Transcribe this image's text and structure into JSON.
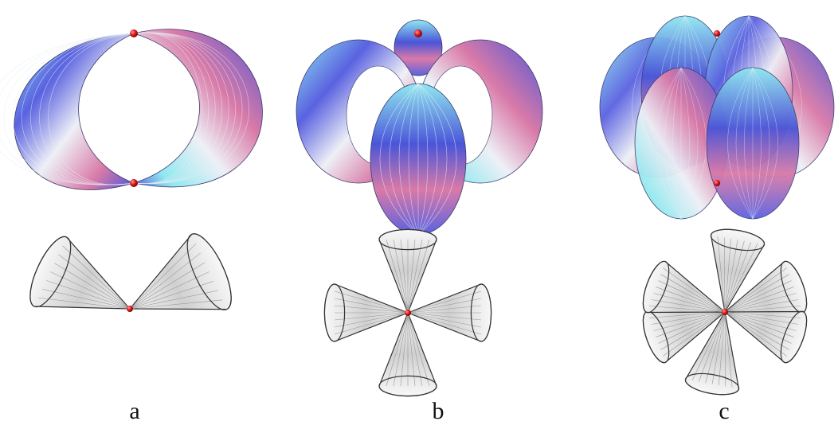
{
  "figure": {
    "panels": [
      {
        "label": "a",
        "lobes": 2
      },
      {
        "label": "b",
        "lobes": 4
      },
      {
        "label": "c",
        "lobes": 6
      }
    ]
  },
  "colors": {
    "background": "#ffffff",
    "surface_blue": "#4a55d8",
    "surface_cyan": "#8fe8f0",
    "surface_pink": "#d97aa8",
    "surface_white": "#eef0f6",
    "vertex_red": "#cc1010",
    "cone_gray": "#9a9a9a",
    "cone_outline": "#333333"
  },
  "icons": {
    "vertex": "red-sphere-vertex",
    "lobe": "torus-lobe-surface",
    "cone": "double-cone-outline"
  }
}
